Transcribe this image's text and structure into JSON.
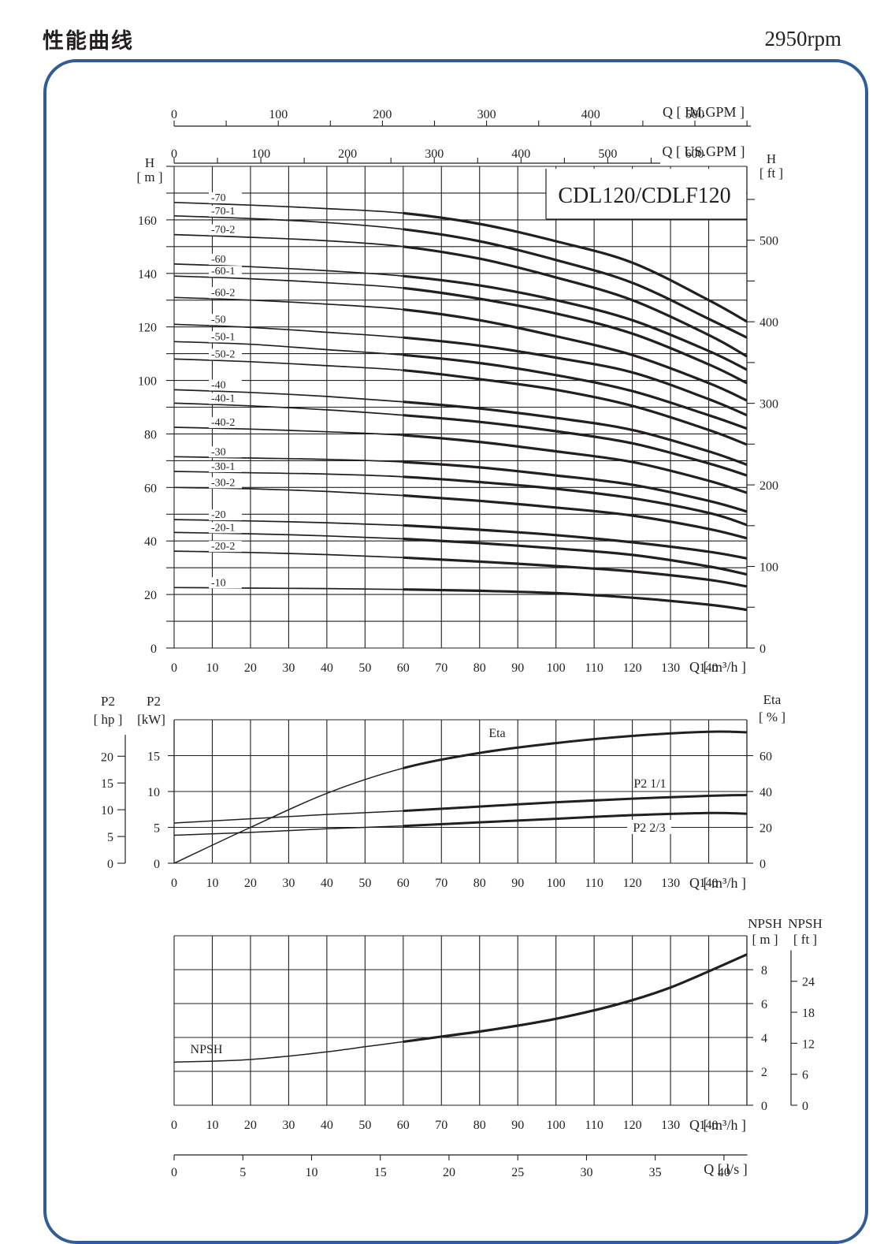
{
  "page": {
    "title": "性能曲线",
    "speed": "2950rpm",
    "frame_color": "#2f5d9a"
  },
  "chart_data": [
    {
      "type": "line",
      "name": "head",
      "model_label": "CDL120/CDLF120",
      "x_axis": {
        "label": "Q [ m³/h ]",
        "unit": "m³/h",
        "range": [
          0,
          150
        ],
        "ticks": [
          0,
          10,
          20,
          30,
          40,
          50,
          60,
          70,
          80,
          90,
          100,
          110,
          120,
          130,
          140
        ]
      },
      "y_axis_left": {
        "label": "H [ m ]",
        "range": [
          0,
          180
        ],
        "ticks": [
          0,
          20,
          40,
          60,
          80,
          100,
          120,
          140,
          160
        ]
      },
      "y_axis_right": {
        "label": "H [ ft ]",
        "ticks": [
          0,
          100,
          200,
          300,
          400,
          500
        ]
      },
      "top_axis_us": {
        "label": "Q [ US.GPM ]",
        "ticks": [
          0,
          100,
          200,
          300,
          400,
          500,
          600
        ]
      },
      "top_axis_im": {
        "label": "Q [ IM.GPM ]",
        "ticks": [
          0,
          100,
          200,
          300,
          400,
          500
        ]
      },
      "x": [
        0,
        20,
        40,
        60,
        80,
        100,
        120,
        140,
        150
      ],
      "series": [
        {
          "name": "-70",
          "values": [
            166.5,
            165.5,
            164.2,
            162.5,
            158.5,
            152,
            144,
            130,
            122
          ]
        },
        {
          "name": "-70-1",
          "values": [
            161.5,
            160.5,
            159,
            156.5,
            152,
            145,
            136.5,
            123,
            116
          ]
        },
        {
          "name": "-70-2",
          "values": [
            154.5,
            153.5,
            152.2,
            150,
            145.5,
            138.5,
            130,
            117,
            109
          ]
        },
        {
          "name": "-60",
          "values": [
            143.5,
            142.5,
            141,
            139,
            135.5,
            130,
            122.5,
            111,
            104
          ]
        },
        {
          "name": "-60-1",
          "values": [
            139,
            138,
            136.5,
            134.5,
            130.5,
            125,
            117.5,
            106,
            99
          ]
        },
        {
          "name": "-60-2",
          "values": [
            131,
            130,
            128.5,
            126.5,
            122.5,
            116.5,
            109.5,
            99,
            92.5
          ]
        },
        {
          "name": "-50",
          "values": [
            121,
            119.8,
            118,
            116,
            113,
            108.5,
            103,
            93,
            87
          ]
        },
        {
          "name": "-50-1",
          "values": [
            114.5,
            113.5,
            111.5,
            109.5,
            106.5,
            102,
            96,
            87,
            82
          ]
        },
        {
          "name": "-50-2",
          "values": [
            108,
            107,
            105.5,
            103.8,
            100.5,
            96.5,
            90.5,
            81.5,
            76
          ]
        },
        {
          "name": "-40",
          "values": [
            96.5,
            95.5,
            94,
            92,
            89.5,
            86,
            81.5,
            73.5,
            68.5
          ]
        },
        {
          "name": "-40-1",
          "values": [
            91.5,
            90.5,
            89,
            87,
            84.5,
            81,
            76.5,
            69,
            64.5
          ]
        },
        {
          "name": "-40-2",
          "values": [
            82.5,
            81.8,
            80.8,
            79.5,
            77,
            73.5,
            69.5,
            62.5,
            58
          ]
        },
        {
          "name": "-30",
          "values": [
            71.5,
            71,
            70.5,
            69.5,
            67.5,
            64.5,
            61,
            55,
            51
          ]
        },
        {
          "name": "-30-1",
          "values": [
            66,
            65.5,
            65,
            64,
            62,
            59.5,
            56,
            50.5,
            46
          ]
        },
        {
          "name": "-30-2",
          "values": [
            60,
            59.5,
            58.5,
            57,
            55,
            52.5,
            49.5,
            44.5,
            41
          ]
        },
        {
          "name": "-20",
          "values": [
            48,
            47.5,
            46.8,
            45.8,
            44.2,
            42.2,
            39.5,
            36,
            33.5
          ]
        },
        {
          "name": "-20-1",
          "values": [
            43.2,
            42.7,
            41.9,
            40.8,
            39.2,
            37.2,
            34.8,
            30.5,
            27.5
          ]
        },
        {
          "name": "-20-2",
          "values": [
            36.2,
            35.7,
            34.9,
            33.8,
            32.3,
            30.6,
            28.6,
            25.5,
            23
          ]
        },
        {
          "name": "-10",
          "values": [
            22.6,
            22.4,
            22.2,
            21.9,
            21.4,
            20.5,
            18.8,
            16.2,
            14.3
          ]
        }
      ]
    },
    {
      "type": "line",
      "name": "power-efficiency",
      "x_axis": {
        "label": "Q [ m³/h ]",
        "range": [
          0,
          150
        ],
        "ticks": [
          0,
          10,
          20,
          30,
          40,
          50,
          60,
          70,
          80,
          90,
          100,
          110,
          120,
          130,
          140
        ]
      },
      "y_axis_kw": {
        "label": "P2 [kW]",
        "range": [
          0,
          20
        ],
        "ticks": [
          0,
          5,
          10,
          15
        ]
      },
      "y_axis_hp": {
        "label": "P2 [ hp ]",
        "ticks": [
          0,
          5,
          10,
          15,
          20
        ]
      },
      "y_axis_eta": {
        "label": "Eta [ % ]",
        "range": [
          0,
          80
        ],
        "ticks": [
          0,
          20,
          40,
          60
        ]
      },
      "x": [
        0,
        20,
        40,
        60,
        80,
        100,
        120,
        140,
        150
      ],
      "series": [
        {
          "name": "Eta",
          "axis": "eta",
          "values": [
            0,
            20,
            39,
            53,
            61.5,
            67,
            71,
            73.3,
            73
          ]
        },
        {
          "name": "P2  1/1",
          "axis": "kw",
          "values": [
            5.6,
            6.2,
            6.8,
            7.3,
            7.9,
            8.5,
            9.0,
            9.4,
            9.5
          ]
        },
        {
          "name": "P2  2/3",
          "axis": "kw",
          "values": [
            3.9,
            4.3,
            4.8,
            5.2,
            5.7,
            6.2,
            6.7,
            7.0,
            6.9
          ]
        }
      ]
    },
    {
      "type": "line",
      "name": "npsh",
      "x_axis": {
        "label": "Q [ m³/h ]",
        "range": [
          0,
          150
        ],
        "ticks": [
          0,
          10,
          20,
          30,
          40,
          50,
          60,
          70,
          80,
          90,
          100,
          110,
          120,
          130,
          140
        ]
      },
      "y_axis_m": {
        "label": "NPSH [ m ]",
        "range": [
          0,
          10
        ],
        "ticks": [
          0,
          2,
          4,
          6,
          8
        ]
      },
      "y_axis_ft": {
        "label": "NPSH [ ft ]",
        "ticks": [
          0,
          6,
          12,
          18,
          24
        ]
      },
      "flow_axis_ls": {
        "label": "Q [ l/s ]",
        "ticks": [
          0,
          5,
          10,
          15,
          20,
          25,
          30,
          35,
          40
        ]
      },
      "x": [
        0,
        10,
        20,
        30,
        40,
        50,
        60,
        70,
        80,
        90,
        100,
        110,
        120,
        130,
        140,
        150
      ],
      "series": [
        {
          "name": "NPSH",
          "values": [
            2.55,
            2.6,
            2.7,
            2.9,
            3.15,
            3.45,
            3.75,
            4.05,
            4.35,
            4.7,
            5.1,
            5.6,
            6.2,
            6.95,
            7.9,
            8.9
          ]
        }
      ]
    }
  ]
}
